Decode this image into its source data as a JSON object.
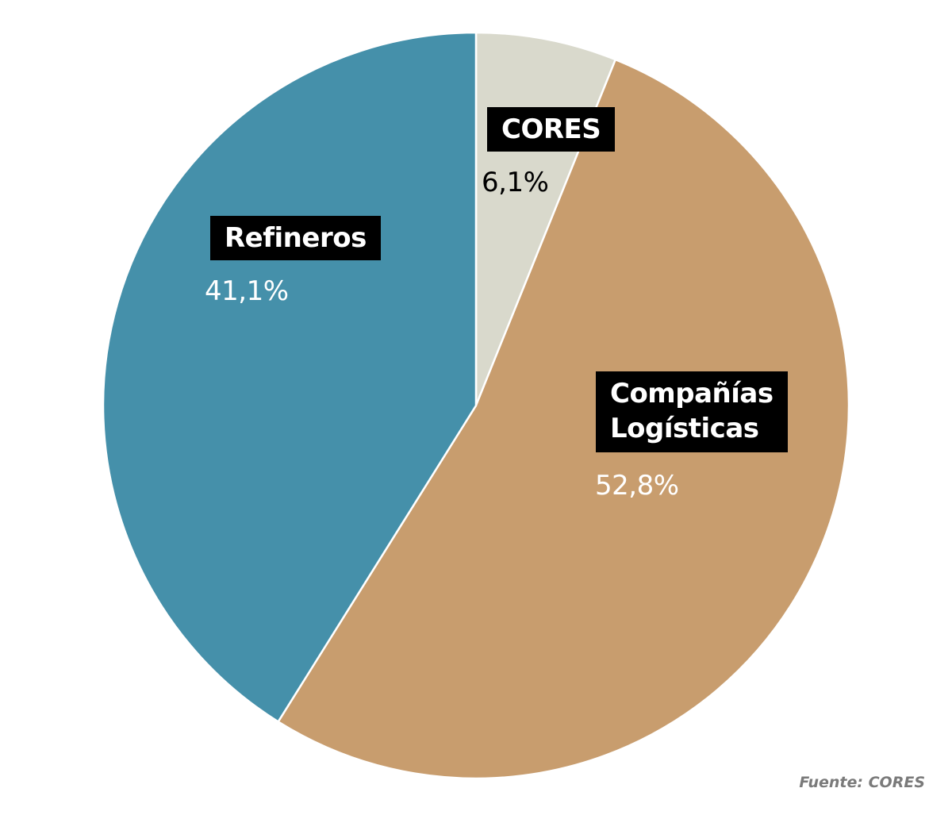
{
  "chart_data": {
    "type": "pie",
    "start": "12 o'clock",
    "direction": "clockwise",
    "slices": [
      {
        "label": "CORES",
        "value": 6.1,
        "value_label": "6,1%",
        "color": "#d9d9cc",
        "value_color": "#000000"
      },
      {
        "label": "Compañías\nLogísticas",
        "value": 52.8,
        "value_label": "52,8%",
        "color": "#c89d6e",
        "value_color": "#ffffff"
      },
      {
        "label": "Refineros",
        "value": 41.1,
        "value_label": "41,1%",
        "color": "#4590aa",
        "value_color": "#ffffff"
      }
    ],
    "source": "Fuente: CORES"
  }
}
